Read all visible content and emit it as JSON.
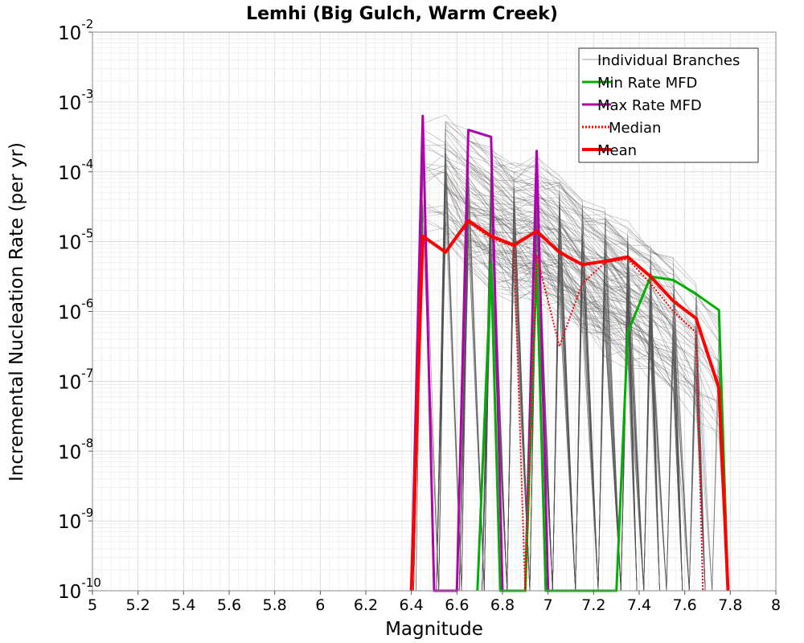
{
  "chart_data": {
    "type": "line",
    "title": "Lemhi (Big Gulch, Warm Creek)",
    "xlabel": "Magnitude",
    "ylabel": "Incremental Nucleation Rate (per yr)",
    "xlim": [
      5,
      8
    ],
    "ylim_log10": [
      -10,
      -2
    ],
    "y_scale": "log",
    "grid": true,
    "x_ticks": [
      {
        "value": 5.0,
        "label": "5"
      },
      {
        "value": 5.2,
        "label": "5.2"
      },
      {
        "value": 5.4,
        "label": "5.4"
      },
      {
        "value": 5.6,
        "label": "5.6"
      },
      {
        "value": 5.8,
        "label": "5.8"
      },
      {
        "value": 6.0,
        "label": "6"
      },
      {
        "value": 6.2,
        "label": "6.2"
      },
      {
        "value": 6.4,
        "label": "6.4"
      },
      {
        "value": 6.6,
        "label": "6.6"
      },
      {
        "value": 6.8,
        "label": "6.8"
      },
      {
        "value": 7.0,
        "label": "7"
      },
      {
        "value": 7.2,
        "label": "7.2"
      },
      {
        "value": 7.4,
        "label": "7.4"
      },
      {
        "value": 7.6,
        "label": "7.6"
      },
      {
        "value": 7.8,
        "label": "7.8"
      },
      {
        "value": 8.0,
        "label": "8"
      }
    ],
    "y_ticks": [
      {
        "exp": -2,
        "base": "10",
        "sup": "-2"
      },
      {
        "exp": -3,
        "base": "10",
        "sup": "-3"
      },
      {
        "exp": -4,
        "base": "10",
        "sup": "-4"
      },
      {
        "exp": -5,
        "base": "10",
        "sup": "-5"
      },
      {
        "exp": -6,
        "base": "10",
        "sup": "-6"
      },
      {
        "exp": -7,
        "base": "10",
        "sup": "-7"
      },
      {
        "exp": -8,
        "base": "10",
        "sup": "-8"
      },
      {
        "exp": -9,
        "base": "10",
        "sup": "-9"
      },
      {
        "exp": -10,
        "base": "10",
        "sup": "-10"
      }
    ],
    "legend": {
      "position": "top-right",
      "entries": [
        {
          "label": "Individual Branches",
          "color": "#a0a0a0",
          "style": "thin"
        },
        {
          "label": "Min Rate MFD",
          "color": "#00b000",
          "style": "solid"
        },
        {
          "label": "Max Rate MFD",
          "color": "#b000b0",
          "style": "solid"
        },
        {
          "label": "Median",
          "color": "#ff0000",
          "style": "dotted"
        },
        {
          "label": "Mean",
          "color": "#ff0000",
          "style": "thick"
        }
      ]
    },
    "branch_color": "#555555",
    "branch_count_drawn": 140,
    "series": [
      {
        "name": "Mean",
        "color": "#ff0000",
        "points": [
          [
            6.4,
            -10.0
          ],
          [
            6.45,
            -4.92
          ],
          [
            6.55,
            -5.15
          ],
          [
            6.65,
            -4.7
          ],
          [
            6.75,
            -4.92
          ],
          [
            6.85,
            -5.05
          ],
          [
            6.95,
            -4.85
          ],
          [
            7.05,
            -5.15
          ],
          [
            7.15,
            -5.33
          ],
          [
            7.25,
            -5.28
          ],
          [
            7.35,
            -5.22
          ],
          [
            7.45,
            -5.5
          ],
          [
            7.55,
            -5.85
          ],
          [
            7.65,
            -6.1
          ],
          [
            7.75,
            -7.1
          ],
          [
            7.79,
            -10.0
          ]
        ]
      },
      {
        "name": "Median",
        "color": "#ff0000",
        "points": [
          [
            6.4,
            -10.0
          ],
          [
            6.45,
            -4.92
          ],
          [
            6.55,
            -5.15
          ],
          [
            6.65,
            -4.72
          ],
          [
            6.75,
            -4.95
          ],
          [
            6.85,
            -5.07
          ],
          [
            6.9,
            -10.0
          ],
          [
            6.95,
            -5.2
          ],
          [
            7.05,
            -6.5
          ],
          [
            7.15,
            -5.6
          ],
          [
            7.25,
            -5.3
          ],
          [
            7.35,
            -5.25
          ],
          [
            7.45,
            -5.6
          ],
          [
            7.55,
            -6.0
          ],
          [
            7.65,
            -6.3
          ],
          [
            7.68,
            -10.0
          ]
        ]
      },
      {
        "name": "Min Rate MFD",
        "color": "#00b000",
        "points": [
          [
            6.69,
            -10.0
          ],
          [
            6.75,
            -5.32
          ],
          [
            6.79,
            -10.0
          ],
          [
            6.9,
            -10.0
          ],
          [
            6.95,
            -5.32
          ],
          [
            6.99,
            -10.0
          ],
          [
            7.3,
            -10.0
          ],
          [
            7.35,
            -6.3
          ],
          [
            7.45,
            -5.5
          ],
          [
            7.55,
            -5.55
          ],
          [
            7.65,
            -5.75
          ],
          [
            7.75,
            -5.98
          ],
          [
            7.79,
            -10.0
          ]
        ]
      },
      {
        "name": "Max Rate MFD",
        "color": "#b000b0",
        "points": [
          [
            6.4,
            -10.0
          ],
          [
            6.45,
            -3.2
          ],
          [
            6.5,
            -10.0
          ],
          [
            6.6,
            -10.0
          ],
          [
            6.65,
            -3.4
          ],
          [
            6.75,
            -3.5
          ],
          [
            6.8,
            -10.0
          ],
          [
            6.9,
            -10.0
          ],
          [
            6.95,
            -3.7
          ],
          [
            7.0,
            -10.0
          ]
        ]
      }
    ]
  }
}
